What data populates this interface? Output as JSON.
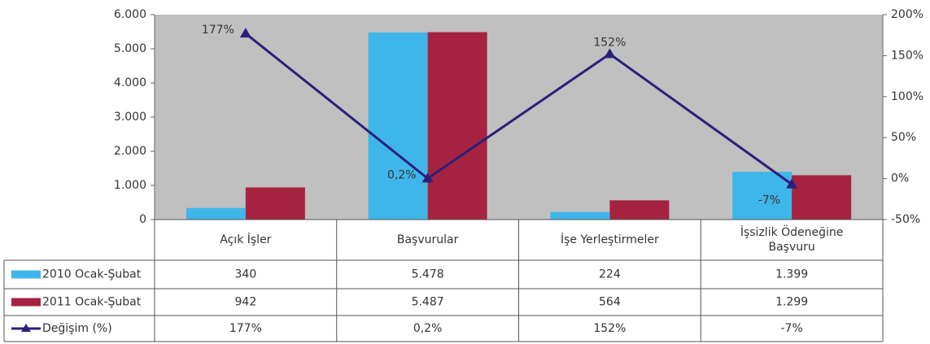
{
  "chart_data": {
    "type": "bar",
    "categories": [
      "Açık İşler",
      "Başvurular",
      "İşe Yerleştirmeler",
      "İşsizlik Ödeneğine Başvuru"
    ],
    "series": [
      {
        "name": "2010 Ocak-Şubat",
        "color": "#3fb6ea",
        "values": [
          340,
          5478,
          224,
          1399
        ],
        "value_labels": [
          "340",
          "5.478",
          "224",
          "1.399"
        ]
      },
      {
        "name": "2011 Ocak-Şubat",
        "color": "#a52341",
        "values": [
          942,
          5487,
          564,
          1299
        ],
        "value_labels": [
          "942",
          "5.487",
          "564",
          "1.299"
        ]
      },
      {
        "name": "Değişim (%)",
        "type": "line",
        "axis": "y2",
        "color": "#2b1f7a",
        "values": [
          177,
          0.2,
          152,
          -7
        ],
        "value_labels": [
          "177%",
          "0,2%",
          "152%",
          "-7%"
        ]
      }
    ],
    "ylim": [
      0,
      6000
    ],
    "yticks": [
      {
        "value": 0,
        "label": "0"
      },
      {
        "value": 1000,
        "label": "1.000"
      },
      {
        "value": 2000,
        "label": "2.000"
      },
      {
        "value": 3000,
        "label": "3.000"
      },
      {
        "value": 4000,
        "label": "4.000"
      },
      {
        "value": 5000,
        "label": "5.000"
      },
      {
        "value": 6000,
        "label": "6.000"
      }
    ],
    "y2lim": [
      -50,
      200
    ],
    "y2ticks": [
      {
        "value": -50,
        "label": "-50%"
      },
      {
        "value": 0,
        "label": "0%"
      },
      {
        "value": 50,
        "label": "50%"
      },
      {
        "value": 100,
        "label": "100%"
      },
      {
        "value": 150,
        "label": "150%"
      },
      {
        "value": 200,
        "label": "200%"
      }
    ],
    "plot_background": "#c0c0c0"
  }
}
